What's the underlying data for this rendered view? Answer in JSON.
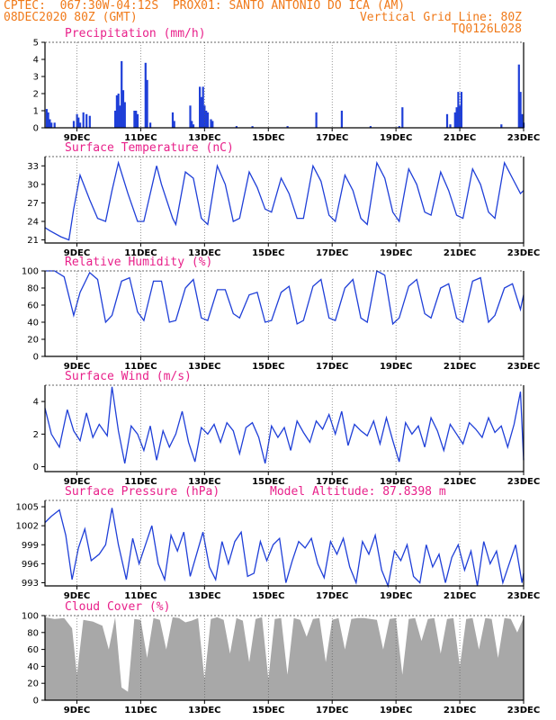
{
  "header": {
    "line1_left": "CPTEC:  067:30W-04:12S  PROX01: SANTO ANTONIO DO ICA (AM)",
    "line2_left": "08DEC2020 80Z (GMT)",
    "line2_right": "Vertical Grid Line: 80Z",
    "line3_right": "TQ0126L028"
  },
  "model_altitude_label": "Model Altitude: 87.8398 m",
  "colors": {
    "header": "#f07a1a",
    "title": "#e8208a",
    "series": "#1f3fd8",
    "cloud": "#a8a8a8"
  },
  "chart_data": [
    {
      "id": "precip",
      "type": "bar",
      "title": "Precipitation (mm/h)",
      "ylim": [
        0,
        5
      ],
      "yticks": [
        0,
        1,
        2,
        3,
        4,
        5
      ],
      "xticks": [
        "9DEC",
        "11DEC",
        "13DEC",
        "15DEC",
        "17DEC",
        "19DEC",
        "21DEC",
        "23DEC"
      ],
      "xrange_days": [
        8.0,
        23.0
      ],
      "values": [
        [
          8.05,
          1.1
        ],
        [
          8.1,
          0.9
        ],
        [
          8.15,
          0.5
        ],
        [
          8.2,
          0.3
        ],
        [
          8.3,
          0.3
        ],
        [
          8.9,
          0.4
        ],
        [
          9.0,
          0.8
        ],
        [
          9.05,
          0.6
        ],
        [
          9.1,
          0.3
        ],
        [
          9.2,
          0.9
        ],
        [
          9.3,
          0.8
        ],
        [
          9.4,
          0.7
        ],
        [
          10.2,
          1.0
        ],
        [
          10.25,
          1.9
        ],
        [
          10.3,
          2.0
        ],
        [
          10.35,
          1.3
        ],
        [
          10.4,
          3.9
        ],
        [
          10.45,
          2.2
        ],
        [
          10.5,
          1.5
        ],
        [
          10.8,
          1.0
        ],
        [
          10.85,
          1.0
        ],
        [
          10.9,
          0.8
        ],
        [
          11.15,
          3.8
        ],
        [
          11.2,
          2.8
        ],
        [
          11.3,
          0.3
        ],
        [
          12.0,
          0.9
        ],
        [
          12.05,
          0.4
        ],
        [
          12.55,
          1.3
        ],
        [
          12.6,
          0.4
        ],
        [
          12.65,
          0.2
        ],
        [
          12.85,
          2.4
        ],
        [
          12.9,
          1.8
        ],
        [
          12.95,
          2.4
        ],
        [
          13.0,
          1.3
        ],
        [
          13.05,
          1.0
        ],
        [
          13.1,
          0.9
        ],
        [
          13.2,
          0.5
        ],
        [
          13.25,
          0.4
        ],
        [
          14.0,
          0.1
        ],
        [
          14.5,
          0.1
        ],
        [
          15.6,
          0.1
        ],
        [
          16.5,
          0.9
        ],
        [
          17.3,
          1.0
        ],
        [
          18.2,
          0.1
        ],
        [
          19.1,
          0.1
        ],
        [
          19.2,
          1.2
        ],
        [
          20.6,
          0.8
        ],
        [
          20.7,
          0.2
        ],
        [
          20.85,
          0.9
        ],
        [
          20.9,
          1.2
        ],
        [
          20.95,
          2.1
        ],
        [
          21.0,
          1.3
        ],
        [
          21.05,
          2.1
        ],
        [
          22.3,
          0.2
        ],
        [
          22.85,
          3.7
        ],
        [
          22.9,
          2.1
        ],
        [
          22.95,
          0.8
        ],
        [
          23.0,
          0.3
        ]
      ]
    },
    {
      "id": "temp",
      "type": "line",
      "title": "Surface Temperature (nC)",
      "ylim": [
        20.5,
        34.5
      ],
      "yticks": [
        21,
        24,
        27,
        30,
        33
      ],
      "xticks": [
        "9DEC",
        "11DEC",
        "13DEC",
        "15DEC",
        "17DEC",
        "19DEC",
        "21DEC",
        "23DEC"
      ],
      "xrange_days": [
        8.0,
        23.0
      ],
      "x": [
        8.0,
        8.15,
        8.5,
        8.75,
        8.9,
        9.1,
        9.4,
        9.65,
        9.9,
        10.1,
        10.3,
        10.6,
        10.9,
        11.1,
        11.5,
        11.65,
        12.0,
        12.1,
        12.4,
        12.65,
        12.9,
        13.1,
        13.4,
        13.65,
        13.9,
        14.1,
        14.4,
        14.65,
        14.9,
        15.1,
        15.4,
        15.65,
        15.9,
        16.1,
        16.4,
        16.65,
        16.9,
        17.1,
        17.4,
        17.65,
        17.9,
        18.1,
        18.4,
        18.65,
        18.9,
        19.1,
        19.4,
        19.65,
        19.9,
        20.1,
        20.4,
        20.65,
        20.9,
        21.1,
        21.4,
        21.65,
        21.9,
        22.1,
        22.4,
        22.65,
        22.9,
        23.0
      ],
      "values": [
        23.0,
        22.5,
        21.5,
        21.0,
        26.0,
        31.5,
        27.5,
        24.5,
        24.0,
        29.0,
        33.5,
        28.5,
        24.0,
        24.0,
        33.0,
        30.0,
        24.5,
        23.5,
        32.0,
        31.0,
        24.5,
        23.5,
        33.0,
        30.0,
        24.0,
        24.5,
        32.0,
        29.5,
        26.0,
        25.5,
        31.0,
        28.5,
        24.5,
        24.5,
        33.0,
        30.5,
        25.0,
        24.0,
        31.5,
        29.0,
        24.5,
        23.5,
        33.5,
        31.0,
        25.5,
        24.0,
        32.5,
        30.0,
        25.5,
        25.0,
        32.0,
        29.0,
        25.0,
        24.5,
        32.5,
        30.0,
        25.5,
        24.5,
        33.5,
        31.0,
        28.5,
        29.0
      ]
    },
    {
      "id": "rh",
      "type": "line",
      "title": "Relative Humidity (%)",
      "ylim": [
        0,
        100
      ],
      "yticks": [
        0,
        20,
        40,
        60,
        80,
        100
      ],
      "xticks": [
        "9DEC",
        "11DEC",
        "13DEC",
        "15DEC",
        "17DEC",
        "19DEC",
        "21DEC",
        "23DEC"
      ],
      "xrange_days": [
        8.0,
        23.0
      ],
      "x": [
        8.0,
        8.3,
        8.6,
        8.9,
        9.1,
        9.4,
        9.65,
        9.9,
        10.1,
        10.4,
        10.65,
        10.9,
        11.1,
        11.4,
        11.65,
        11.9,
        12.1,
        12.4,
        12.65,
        12.9,
        13.1,
        13.4,
        13.65,
        13.9,
        14.1,
        14.4,
        14.65,
        14.9,
        15.1,
        15.4,
        15.65,
        15.9,
        16.1,
        16.4,
        16.65,
        16.9,
        17.1,
        17.4,
        17.65,
        17.9,
        18.1,
        18.4,
        18.65,
        18.9,
        19.1,
        19.4,
        19.65,
        19.9,
        20.1,
        20.4,
        20.65,
        20.9,
        21.1,
        21.4,
        21.65,
        21.9,
        22.1,
        22.4,
        22.65,
        22.9,
        23.0
      ],
      "values": [
        100,
        100,
        93,
        48,
        75,
        98,
        90,
        40,
        48,
        88,
        92,
        52,
        42,
        88,
        88,
        40,
        42,
        80,
        90,
        45,
        42,
        78,
        78,
        50,
        45,
        72,
        75,
        40,
        42,
        75,
        82,
        38,
        42,
        82,
        90,
        45,
        42,
        80,
        90,
        45,
        40,
        100,
        95,
        38,
        45,
        82,
        90,
        50,
        45,
        80,
        85,
        45,
        40,
        88,
        92,
        40,
        48,
        80,
        85,
        55,
        72
      ]
    },
    {
      "id": "wind",
      "type": "line",
      "title": "Surface Wind (m/s)",
      "ylim": [
        -0.3,
        5
      ],
      "yticks": [
        0,
        2,
        4
      ],
      "xticks": [
        "9DEC",
        "11DEC",
        "13DEC",
        "15DEC",
        "17DEC",
        "19DEC",
        "21DEC",
        "23DEC"
      ],
      "xrange_days": [
        8.0,
        23.0
      ],
      "x": [
        8.0,
        8.2,
        8.45,
        8.7,
        8.9,
        9.1,
        9.3,
        9.5,
        9.7,
        9.95,
        10.1,
        10.3,
        10.5,
        10.7,
        10.9,
        11.1,
        11.3,
        11.5,
        11.7,
        11.9,
        12.1,
        12.3,
        12.5,
        12.7,
        12.9,
        13.1,
        13.3,
        13.5,
        13.7,
        13.9,
        14.1,
        14.3,
        14.5,
        14.7,
        14.9,
        15.1,
        15.3,
        15.5,
        15.7,
        15.9,
        16.1,
        16.3,
        16.5,
        16.7,
        16.9,
        17.1,
        17.3,
        17.5,
        17.7,
        17.9,
        18.1,
        18.3,
        18.5,
        18.7,
        18.9,
        19.1,
        19.3,
        19.5,
        19.7,
        19.9,
        20.1,
        20.3,
        20.5,
        20.7,
        20.9,
        21.1,
        21.3,
        21.5,
        21.7,
        21.9,
        22.1,
        22.3,
        22.5,
        22.7,
        22.9,
        23.0
      ],
      "values": [
        3.6,
        2.0,
        1.2,
        3.5,
        2.2,
        1.6,
        3.3,
        1.8,
        2.6,
        1.9,
        4.9,
        2.2,
        0.2,
        2.5,
        2.0,
        1.0,
        2.5,
        0.4,
        2.2,
        1.2,
        2.0,
        3.4,
        1.5,
        0.3,
        2.4,
        2.0,
        2.6,
        1.5,
        2.7,
        2.2,
        0.8,
        2.4,
        2.7,
        1.8,
        0.2,
        2.5,
        1.8,
        2.4,
        1.0,
        2.8,
        2.1,
        1.5,
        2.8,
        2.3,
        3.2,
        2.0,
        3.4,
        1.3,
        2.6,
        2.2,
        1.9,
        2.8,
        1.4,
        3.0,
        1.6,
        0.3,
        2.7,
        2.0,
        2.5,
        1.2,
        3.0,
        2.2,
        1.0,
        2.6,
        2.0,
        1.4,
        2.7,
        2.3,
        1.8,
        3.0,
        2.1,
        2.5,
        1.2,
        2.6,
        4.6,
        0.4
      ]
    },
    {
      "id": "pres",
      "type": "line",
      "title": "Surface Pressure (hPa)",
      "ylim": [
        992.5,
        1006
      ],
      "yticks": [
        993,
        996,
        999,
        1002,
        1005
      ],
      "xticks": [
        "9DEC",
        "11DEC",
        "13DEC",
        "15DEC",
        "17DEC",
        "19DEC",
        "21DEC",
        "23DEC"
      ],
      "xrange_days": [
        8.0,
        23.0
      ],
      "x": [
        8.0,
        8.2,
        8.45,
        8.65,
        8.85,
        9.05,
        9.25,
        9.45,
        9.7,
        9.9,
        10.1,
        10.3,
        10.55,
        10.75,
        10.95,
        11.15,
        11.35,
        11.55,
        11.75,
        11.95,
        12.15,
        12.35,
        12.55,
        12.75,
        12.95,
        13.15,
        13.35,
        13.55,
        13.75,
        13.95,
        14.15,
        14.35,
        14.55,
        14.75,
        14.95,
        15.15,
        15.35,
        15.55,
        15.75,
        15.95,
        16.15,
        16.35,
        16.55,
        16.75,
        16.95,
        17.15,
        17.35,
        17.55,
        17.75,
        17.95,
        18.15,
        18.35,
        18.55,
        18.75,
        18.95,
        19.15,
        19.35,
        19.55,
        19.75,
        19.95,
        20.15,
        20.35,
        20.55,
        20.75,
        20.95,
        21.15,
        21.35,
        21.55,
        21.75,
        21.95,
        22.15,
        22.35,
        22.55,
        22.75,
        22.95,
        23.0
      ],
      "values": [
        1002.5,
        1003.5,
        1004.5,
        1000.5,
        993.5,
        998.5,
        1001.5,
        996.5,
        997.5,
        999.0,
        1004.8,
        999.0,
        993.5,
        1000.0,
        996.0,
        999.0,
        1002.0,
        996.0,
        993.5,
        1000.5,
        998.0,
        1001.0,
        994.0,
        997.5,
        1001.0,
        995.5,
        993.5,
        999.5,
        996.0,
        999.5,
        1001.0,
        994.0,
        994.5,
        999.5,
        996.5,
        999.0,
        1000.0,
        993.0,
        996.5,
        999.5,
        998.5,
        1000.0,
        996.0,
        993.8,
        999.5,
        997.5,
        1000.0,
        995.5,
        993.0,
        999.5,
        997.5,
        1000.5,
        995.0,
        992.5,
        998.0,
        996.5,
        999.0,
        994.0,
        993.0,
        999.0,
        995.5,
        997.5,
        993.0,
        997.0,
        999.0,
        995.0,
        998.0,
        992.5,
        999.5,
        996.0,
        998.0,
        993.0,
        996.0,
        999.0,
        993.0,
        994.5
      ]
    },
    {
      "id": "cloud",
      "type": "area",
      "title": "Cloud Cover (%)",
      "ylim": [
        0,
        100
      ],
      "yticks": [
        0,
        20,
        40,
        60,
        80,
        100
      ],
      "xticks": [
        "9DEC",
        "11DEC",
        "13DEC",
        "15DEC",
        "17DEC",
        "19DEC",
        "21DEC",
        "23DEC"
      ],
      "xrange_days": [
        8.0,
        23.0
      ],
      "x": [
        8.0,
        8.3,
        8.6,
        8.85,
        9.0,
        9.2,
        9.5,
        9.8,
        10.0,
        10.2,
        10.4,
        10.6,
        10.8,
        11.0,
        11.2,
        11.4,
        11.6,
        11.8,
        12.0,
        12.2,
        12.4,
        12.6,
        12.8,
        13.0,
        13.2,
        13.4,
        13.6,
        13.8,
        14.0,
        14.2,
        14.4,
        14.6,
        14.8,
        15.0,
        15.2,
        15.4,
        15.6,
        15.8,
        16.0,
        16.2,
        16.4,
        16.6,
        16.8,
        17.0,
        17.2,
        17.4,
        17.6,
        17.8,
        18.0,
        18.2,
        18.4,
        18.6,
        18.8,
        19.0,
        19.2,
        19.4,
        19.6,
        19.8,
        20.0,
        20.2,
        20.4,
        20.6,
        20.8,
        21.0,
        21.2,
        21.4,
        21.6,
        21.8,
        22.0,
        22.2,
        22.4,
        22.6,
        22.8,
        23.0
      ],
      "values": [
        98,
        96,
        97,
        85,
        30,
        95,
        93,
        88,
        60,
        98,
        15,
        10,
        96,
        95,
        50,
        97,
        95,
        60,
        98,
        97,
        92,
        94,
        97,
        25,
        96,
        98,
        95,
        55,
        97,
        94,
        45,
        96,
        98,
        25,
        96,
        97,
        30,
        97,
        95,
        75,
        96,
        97,
        45,
        95,
        97,
        60,
        96,
        97,
        97,
        96,
        95,
        60,
        96,
        97,
        30,
        96,
        97,
        70,
        96,
        97,
        55,
        96,
        97,
        40,
        96,
        97,
        60,
        97,
        96,
        50,
        97,
        96,
        80,
        97
      ]
    }
  ]
}
